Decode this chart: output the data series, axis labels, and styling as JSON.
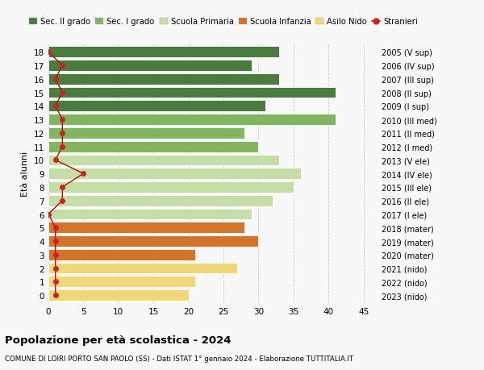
{
  "ages": [
    18,
    17,
    16,
    15,
    14,
    13,
    12,
    11,
    10,
    9,
    8,
    7,
    6,
    5,
    4,
    3,
    2,
    1,
    0
  ],
  "right_labels": [
    "2005 (V sup)",
    "2006 (IV sup)",
    "2007 (III sup)",
    "2008 (II sup)",
    "2009 (I sup)",
    "2010 (III med)",
    "2011 (II med)",
    "2012 (I med)",
    "2013 (V ele)",
    "2014 (IV ele)",
    "2015 (III ele)",
    "2016 (II ele)",
    "2017 (I ele)",
    "2018 (mater)",
    "2019 (mater)",
    "2020 (mater)",
    "2021 (nido)",
    "2022 (nido)",
    "2023 (nido)"
  ],
  "bar_values": [
    33,
    29,
    33,
    41,
    31,
    41,
    28,
    30,
    33,
    36,
    35,
    32,
    29,
    28,
    30,
    21,
    27,
    21,
    20
  ],
  "bar_colors": [
    "#4a7c3f",
    "#4a7c3f",
    "#4a7c3f",
    "#4a7c3f",
    "#4a7c3f",
    "#82b562",
    "#82b562",
    "#82b562",
    "#c5dea8",
    "#c5dea8",
    "#c5dea8",
    "#c5dea8",
    "#c5dea8",
    "#d4732a",
    "#d4732a",
    "#d4732a",
    "#f0d878",
    "#f0d878",
    "#f0d878"
  ],
  "stranieri_values": [
    0,
    2,
    1,
    2,
    1,
    2,
    2,
    2,
    1,
    5,
    2,
    2,
    0,
    1,
    1,
    1,
    1,
    1,
    1
  ],
  "legend_labels": [
    "Sec. II grado",
    "Sec. I grado",
    "Scuola Primaria",
    "Scuola Infanzia",
    "Asilo Nido",
    "Stranieri"
  ],
  "legend_colors": [
    "#4a7c3f",
    "#82b562",
    "#c5dea8",
    "#d4732a",
    "#f0d878",
    "#cc2222"
  ],
  "title": "Popolazione per età scolastica - 2024",
  "subtitle": "COMUNE DI LOIRI PORTO SAN PAOLO (SS) - Dati ISTAT 1° gennaio 2024 - Elaborazione TUTTITALIA.IT",
  "ylabel_left": "Età alunni",
  "xlim": [
    0,
    47
  ],
  "xticks": [
    0,
    5,
    10,
    15,
    20,
    25,
    30,
    35,
    40,
    45
  ],
  "background_color": "#f8f8f8",
  "grid_color": "#cccccc"
}
